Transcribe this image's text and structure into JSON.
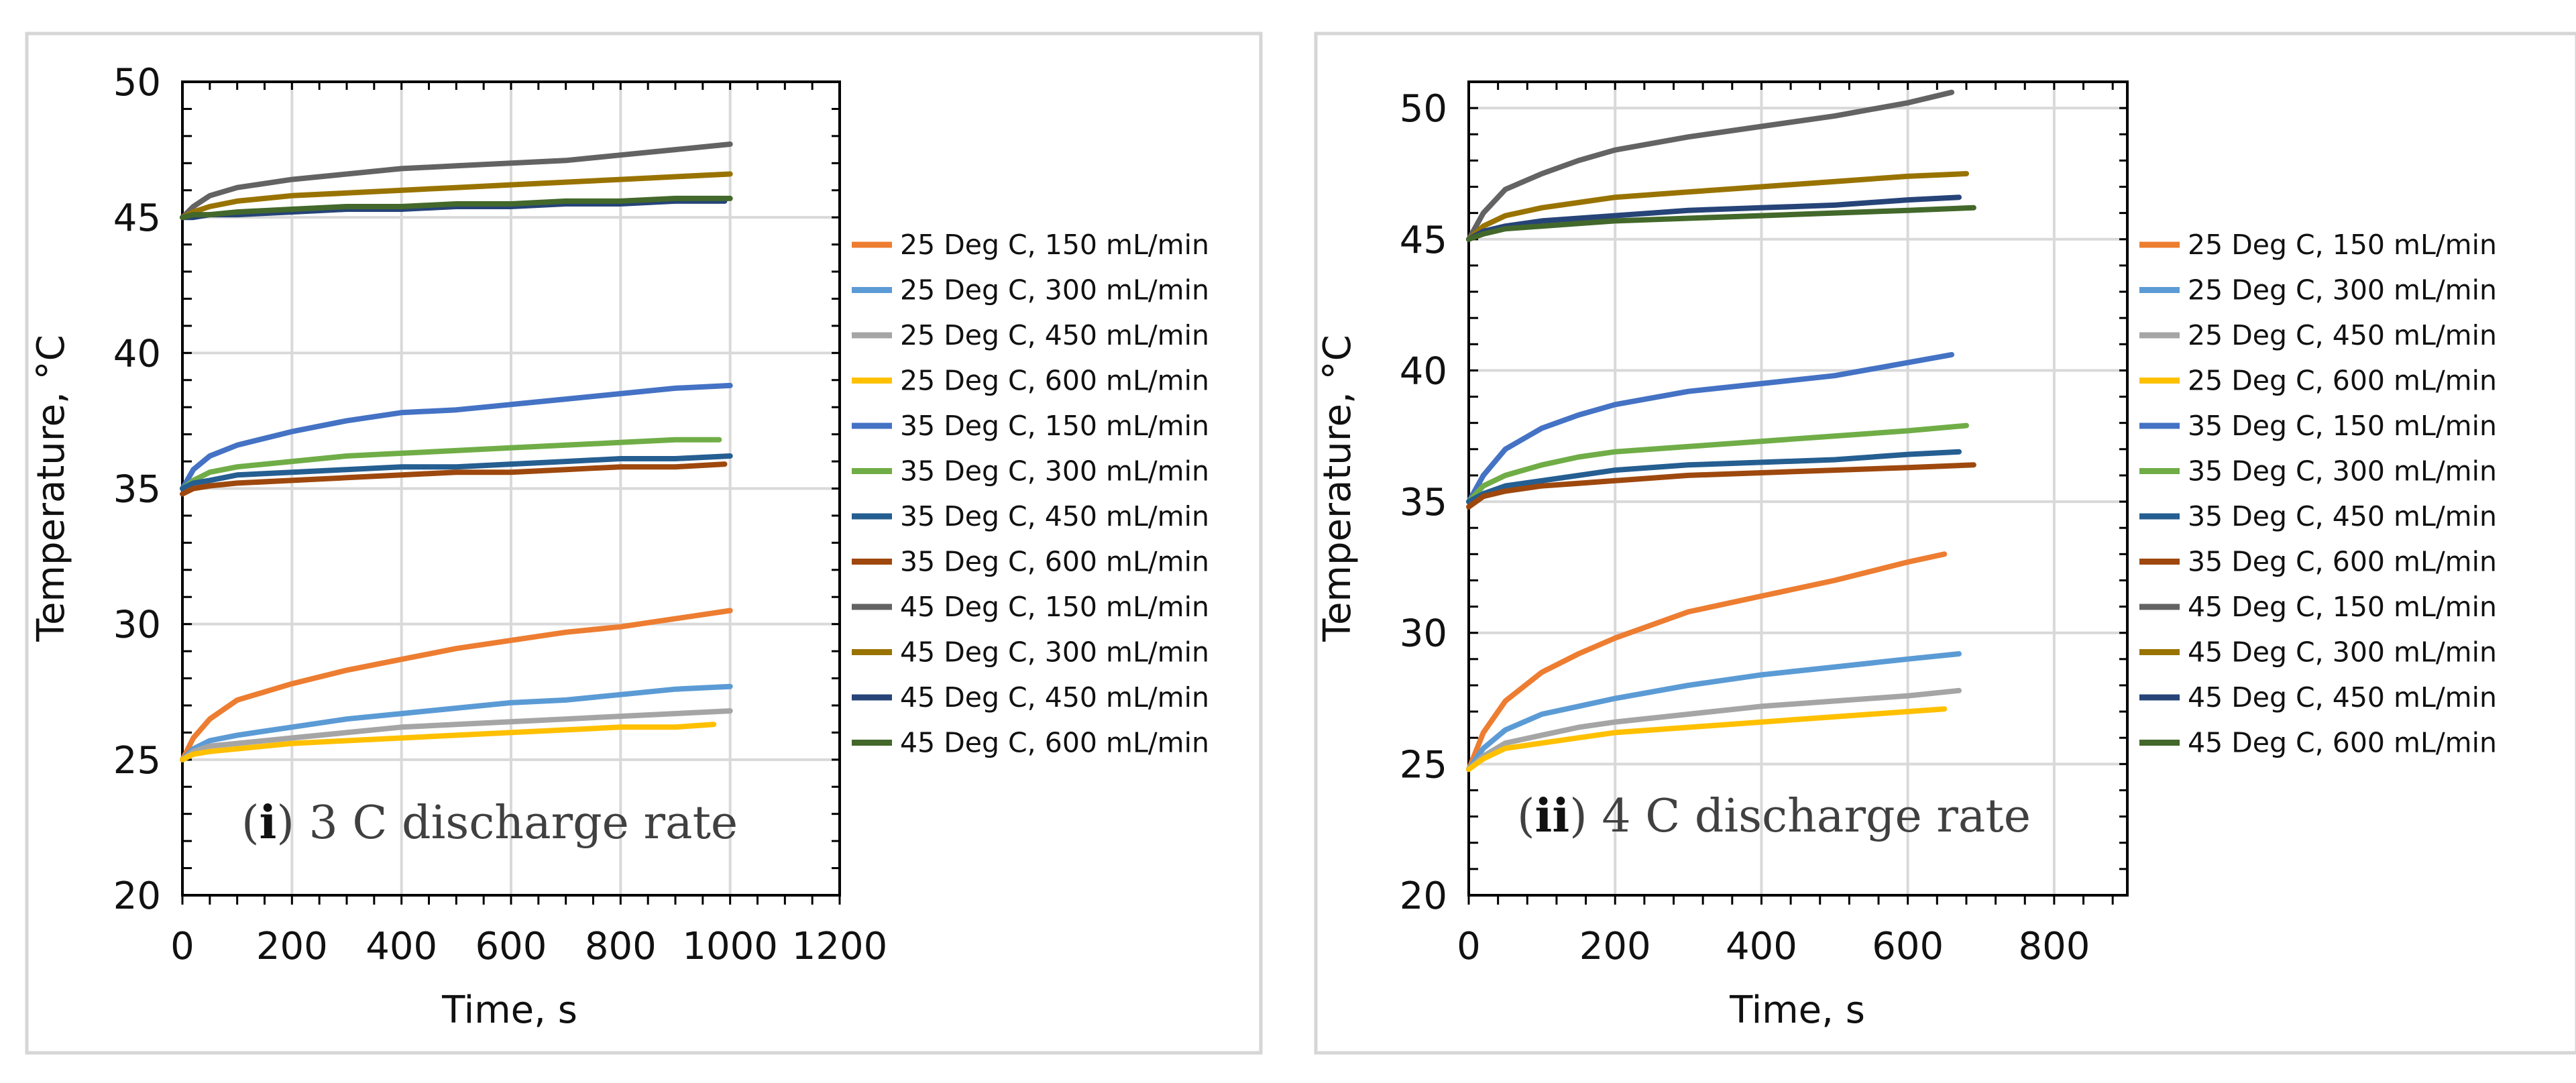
{
  "chart_data": [
    {
      "type": "line",
      "annotation_prefix": "(",
      "annotation_index": "i",
      "annotation_suffix": ") 3 C discharge rate",
      "xlabel": "Time, s",
      "ylabel": "Temperature, °C",
      "xlim": [
        0,
        1200
      ],
      "ylim": [
        20,
        50
      ],
      "xticks": [
        0,
        200,
        400,
        600,
        800,
        1000,
        1200
      ],
      "yticks": [
        20,
        25,
        30,
        35,
        40,
        45,
        50
      ],
      "x_minor_step": 50,
      "y_minor_step": 1,
      "grid": true,
      "legend_position": "right",
      "series": [
        {
          "name": "25 Deg C, 150 mL/min",
          "color": "#ED7D31",
          "x": [
            0,
            20,
            50,
            100,
            200,
            300,
            400,
            500,
            600,
            700,
            800,
            900,
            1000
          ],
          "y": [
            25.0,
            25.8,
            26.5,
            27.2,
            27.8,
            28.3,
            28.7,
            29.1,
            29.4,
            29.7,
            29.9,
            30.2,
            30.5
          ]
        },
        {
          "name": "25 Deg C, 300 mL/min",
          "color": "#5B9BD5",
          "x": [
            0,
            20,
            50,
            100,
            200,
            300,
            400,
            500,
            600,
            700,
            800,
            900,
            1000
          ],
          "y": [
            25.0,
            25.4,
            25.7,
            25.9,
            26.2,
            26.5,
            26.7,
            26.9,
            27.1,
            27.2,
            27.4,
            27.6,
            27.7
          ]
        },
        {
          "name": "25 Deg C, 450 mL/min",
          "color": "#A5A5A5",
          "x": [
            0,
            20,
            50,
            100,
            200,
            300,
            400,
            500,
            600,
            700,
            800,
            900,
            1000
          ],
          "y": [
            25.0,
            25.3,
            25.5,
            25.6,
            25.8,
            26.0,
            26.2,
            26.3,
            26.4,
            26.5,
            26.6,
            26.7,
            26.8
          ]
        },
        {
          "name": "25 Deg C, 600 mL/min",
          "color": "#FFC000",
          "x": [
            0,
            20,
            50,
            100,
            200,
            300,
            400,
            500,
            600,
            700,
            800,
            900,
            970
          ],
          "y": [
            25.0,
            25.2,
            25.3,
            25.4,
            25.6,
            25.7,
            25.8,
            25.9,
            26.0,
            26.1,
            26.2,
            26.2,
            26.3
          ]
        },
        {
          "name": "35 Deg C, 150 mL/min",
          "color": "#4472C4",
          "x": [
            0,
            20,
            50,
            100,
            200,
            300,
            400,
            500,
            600,
            700,
            800,
            900,
            1000
          ],
          "y": [
            35.0,
            35.7,
            36.2,
            36.6,
            37.1,
            37.5,
            37.8,
            37.9,
            38.1,
            38.3,
            38.5,
            38.7,
            38.8
          ]
        },
        {
          "name": "35 Deg C, 300 mL/min",
          "color": "#70AD47",
          "x": [
            0,
            20,
            50,
            100,
            200,
            300,
            400,
            500,
            600,
            700,
            800,
            900,
            980
          ],
          "y": [
            35.0,
            35.3,
            35.6,
            35.8,
            36.0,
            36.2,
            36.3,
            36.4,
            36.5,
            36.6,
            36.7,
            36.8,
            36.8
          ]
        },
        {
          "name": "35 Deg C, 450 mL/min",
          "color": "#255E91",
          "x": [
            0,
            20,
            50,
            100,
            200,
            300,
            400,
            500,
            600,
            700,
            800,
            900,
            1000
          ],
          "y": [
            35.0,
            35.2,
            35.3,
            35.5,
            35.6,
            35.7,
            35.8,
            35.8,
            35.9,
            36.0,
            36.1,
            36.1,
            36.2
          ]
        },
        {
          "name": "35 Deg C, 600 mL/min",
          "color": "#9E480E",
          "x": [
            0,
            20,
            50,
            100,
            200,
            300,
            400,
            500,
            600,
            700,
            800,
            900,
            990
          ],
          "y": [
            34.8,
            35.0,
            35.1,
            35.2,
            35.3,
            35.4,
            35.5,
            35.6,
            35.6,
            35.7,
            35.8,
            35.8,
            35.9
          ]
        },
        {
          "name": "45 Deg C, 150 mL/min",
          "color": "#636363",
          "x": [
            0,
            20,
            50,
            100,
            200,
            300,
            400,
            500,
            600,
            700,
            800,
            900,
            1000
          ],
          "y": [
            45.0,
            45.4,
            45.8,
            46.1,
            46.4,
            46.6,
            46.8,
            46.9,
            47.0,
            47.1,
            47.3,
            47.5,
            47.7
          ]
        },
        {
          "name": "45 Deg C, 300 mL/min",
          "color": "#997300",
          "x": [
            0,
            20,
            50,
            100,
            200,
            300,
            400,
            500,
            600,
            700,
            800,
            900,
            1000
          ],
          "y": [
            45.0,
            45.2,
            45.4,
            45.6,
            45.8,
            45.9,
            46.0,
            46.1,
            46.2,
            46.3,
            46.4,
            46.5,
            46.6
          ]
        },
        {
          "name": "45 Deg C, 450 mL/min",
          "color": "#264478",
          "x": [
            0,
            20,
            50,
            100,
            200,
            300,
            400,
            500,
            600,
            700,
            800,
            900,
            990
          ],
          "y": [
            45.0,
            45.0,
            45.1,
            45.1,
            45.2,
            45.3,
            45.3,
            45.4,
            45.4,
            45.5,
            45.5,
            45.6,
            45.6
          ]
        },
        {
          "name": "45 Deg C, 600 mL/min",
          "color": "#43682B",
          "x": [
            0,
            20,
            50,
            100,
            200,
            300,
            400,
            500,
            600,
            700,
            800,
            900,
            1000
          ],
          "y": [
            45.0,
            45.1,
            45.1,
            45.2,
            45.3,
            45.4,
            45.4,
            45.5,
            45.5,
            45.6,
            45.6,
            45.7,
            45.7
          ]
        }
      ]
    },
    {
      "type": "line",
      "annotation_prefix": "(",
      "annotation_index": "ii",
      "annotation_suffix": ") 4 C discharge rate",
      "xlabel": "Time, s",
      "ylabel": "Temperature, °C",
      "xlim": [
        0,
        900
      ],
      "ylim": [
        20,
        51
      ],
      "xticks": [
        0,
        200,
        400,
        600,
        800
      ],
      "yticks": [
        20,
        25,
        30,
        35,
        40,
        45,
        50
      ],
      "x_minor_step": 40,
      "y_minor_step": 1,
      "grid": true,
      "legend_position": "right",
      "series": [
        {
          "name": "25 Deg C, 150 mL/min",
          "color": "#ED7D31",
          "x": [
            0,
            20,
            50,
            100,
            150,
            200,
            300,
            400,
            500,
            600,
            650
          ],
          "y": [
            24.8,
            26.2,
            27.4,
            28.5,
            29.2,
            29.8,
            30.8,
            31.4,
            32.0,
            32.7,
            33.0
          ]
        },
        {
          "name": "25 Deg C, 300 mL/min",
          "color": "#5B9BD5",
          "x": [
            0,
            20,
            50,
            100,
            150,
            200,
            300,
            400,
            500,
            600,
            670
          ],
          "y": [
            24.8,
            25.6,
            26.3,
            26.9,
            27.2,
            27.5,
            28.0,
            28.4,
            28.7,
            29.0,
            29.2
          ]
        },
        {
          "name": "25 Deg C, 450 mL/min",
          "color": "#A5A5A5",
          "x": [
            0,
            20,
            50,
            100,
            150,
            200,
            300,
            400,
            500,
            600,
            670
          ],
          "y": [
            24.8,
            25.3,
            25.8,
            26.1,
            26.4,
            26.6,
            26.9,
            27.2,
            27.4,
            27.6,
            27.8
          ]
        },
        {
          "name": "25 Deg C, 600 mL/min",
          "color": "#FFC000",
          "x": [
            0,
            20,
            50,
            100,
            150,
            200,
            300,
            400,
            500,
            600,
            650
          ],
          "y": [
            24.8,
            25.2,
            25.6,
            25.8,
            26.0,
            26.2,
            26.4,
            26.6,
            26.8,
            27.0,
            27.1
          ]
        },
        {
          "name": "35 Deg C, 150 mL/min",
          "color": "#4472C4",
          "x": [
            0,
            20,
            50,
            100,
            150,
            200,
            300,
            400,
            500,
            600,
            660
          ],
          "y": [
            35.0,
            36.0,
            37.0,
            37.8,
            38.3,
            38.7,
            39.2,
            39.5,
            39.8,
            40.3,
            40.6
          ]
        },
        {
          "name": "35 Deg C, 300 mL/min",
          "color": "#70AD47",
          "x": [
            0,
            20,
            50,
            100,
            150,
            200,
            300,
            400,
            500,
            600,
            680
          ],
          "y": [
            35.0,
            35.6,
            36.0,
            36.4,
            36.7,
            36.9,
            37.1,
            37.3,
            37.5,
            37.7,
            37.9
          ]
        },
        {
          "name": "35 Deg C, 450 mL/min",
          "color": "#255E91",
          "x": [
            0,
            20,
            50,
            100,
            150,
            200,
            300,
            400,
            500,
            600,
            670
          ],
          "y": [
            35.0,
            35.3,
            35.6,
            35.8,
            36.0,
            36.2,
            36.4,
            36.5,
            36.6,
            36.8,
            36.9
          ]
        },
        {
          "name": "35 Deg C, 600 mL/min",
          "color": "#9E480E",
          "x": [
            0,
            20,
            50,
            100,
            150,
            200,
            300,
            400,
            500,
            600,
            690
          ],
          "y": [
            34.8,
            35.2,
            35.4,
            35.6,
            35.7,
            35.8,
            36.0,
            36.1,
            36.2,
            36.3,
            36.4
          ]
        },
        {
          "name": "45 Deg C, 150 mL/min",
          "color": "#636363",
          "x": [
            0,
            20,
            50,
            100,
            150,
            200,
            300,
            400,
            500,
            600,
            660
          ],
          "y": [
            45.0,
            46.0,
            46.9,
            47.5,
            48.0,
            48.4,
            48.9,
            49.3,
            49.7,
            50.2,
            50.6
          ]
        },
        {
          "name": "45 Deg C, 300 mL/min",
          "color": "#997300",
          "x": [
            0,
            20,
            50,
            100,
            150,
            200,
            300,
            400,
            500,
            600,
            680
          ],
          "y": [
            45.0,
            45.5,
            45.9,
            46.2,
            46.4,
            46.6,
            46.8,
            47.0,
            47.2,
            47.4,
            47.5
          ]
        },
        {
          "name": "45 Deg C, 450 mL/min",
          "color": "#264478",
          "x": [
            0,
            20,
            50,
            100,
            150,
            200,
            300,
            400,
            500,
            600,
            670
          ],
          "y": [
            45.0,
            45.3,
            45.5,
            45.7,
            45.8,
            45.9,
            46.1,
            46.2,
            46.3,
            46.5,
            46.6
          ]
        },
        {
          "name": "45 Deg C, 600 mL/min",
          "color": "#43682B",
          "x": [
            0,
            20,
            50,
            100,
            150,
            200,
            300,
            400,
            500,
            600,
            690
          ],
          "y": [
            45.0,
            45.2,
            45.4,
            45.5,
            45.6,
            45.7,
            45.8,
            45.9,
            46.0,
            46.1,
            46.2
          ]
        }
      ]
    }
  ]
}
